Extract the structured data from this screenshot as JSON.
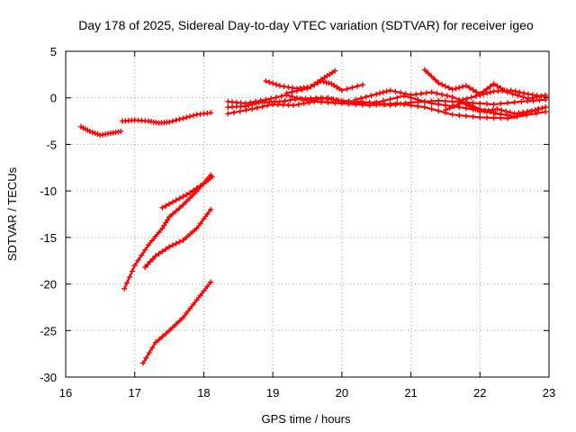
{
  "chart_data": {
    "type": "scatter",
    "title": "Day 178 of 2025, Sidereal Day-to-day VTEC variation (SDTVAR) for receiver igeo",
    "xlabel": "GPS time / hours",
    "ylabel": "SDTVAR / TECUs",
    "xlim": [
      16,
      23
    ],
    "ylim": [
      -30,
      5
    ],
    "xticks": [
      16,
      17,
      18,
      19,
      20,
      21,
      22,
      23
    ],
    "yticks": [
      5,
      0,
      -5,
      -10,
      -15,
      -20,
      -25,
      -30
    ],
    "grid": true,
    "marker": "+",
    "color": "#ff0000",
    "series": [
      {
        "name": "s1",
        "points": [
          [
            16.22,
            -3.1
          ],
          [
            16.35,
            -3.6
          ],
          [
            16.5,
            -4.0
          ],
          [
            16.65,
            -3.8
          ],
          [
            16.8,
            -3.6
          ]
        ]
      },
      {
        "name": "s2",
        "points": [
          [
            16.82,
            -2.5
          ],
          [
            17.0,
            -2.4
          ],
          [
            17.2,
            -2.5
          ],
          [
            17.35,
            -2.7
          ],
          [
            17.5,
            -2.6
          ],
          [
            17.7,
            -2.2
          ],
          [
            17.9,
            -1.8
          ],
          [
            18.1,
            -1.6
          ]
        ]
      },
      {
        "name": "s3",
        "points": [
          [
            16.85,
            -20.5
          ],
          [
            17.0,
            -18.0
          ],
          [
            17.2,
            -15.8
          ],
          [
            17.4,
            -14.0
          ],
          [
            17.5,
            -12.8
          ],
          [
            17.7,
            -11.5
          ],
          [
            17.9,
            -10.0
          ],
          [
            18.1,
            -8.3
          ]
        ]
      },
      {
        "name": "s4",
        "points": [
          [
            17.4,
            -11.8
          ],
          [
            17.6,
            -11.0
          ],
          [
            17.8,
            -10.2
          ],
          [
            18.0,
            -9.2
          ],
          [
            18.12,
            -8.5
          ]
        ]
      },
      {
        "name": "s5",
        "points": [
          [
            17.15,
            -18.2
          ],
          [
            17.3,
            -17.0
          ],
          [
            17.5,
            -16.0
          ],
          [
            17.7,
            -15.3
          ],
          [
            17.9,
            -14.0
          ],
          [
            18.1,
            -12.0
          ]
        ]
      },
      {
        "name": "s6",
        "points": [
          [
            17.12,
            -28.5
          ],
          [
            17.3,
            -26.3
          ],
          [
            17.5,
            -25.0
          ],
          [
            17.7,
            -23.6
          ],
          [
            17.9,
            -21.7
          ],
          [
            18.1,
            -19.8
          ]
        ]
      },
      {
        "name": "s7",
        "points": [
          [
            18.35,
            -1.0
          ],
          [
            18.6,
            -0.9
          ],
          [
            18.8,
            -0.5
          ],
          [
            19.1,
            -0.4
          ],
          [
            19.4,
            -0.1
          ],
          [
            19.7,
            0.0
          ],
          [
            20.0,
            -0.3
          ],
          [
            20.4,
            -0.5
          ],
          [
            20.7,
            -0.8
          ],
          [
            21.0,
            -0.5
          ],
          [
            21.4,
            -0.3
          ],
          [
            21.8,
            -0.5
          ],
          [
            22.2,
            -0.7
          ],
          [
            22.6,
            -0.4
          ],
          [
            22.95,
            -0.2
          ]
        ]
      },
      {
        "name": "s8",
        "points": [
          [
            18.35,
            -0.4
          ],
          [
            18.6,
            -0.6
          ],
          [
            18.9,
            -0.2
          ],
          [
            19.2,
            0.3
          ],
          [
            19.5,
            -0.3
          ],
          [
            19.8,
            0.0
          ],
          [
            20.1,
            -0.6
          ],
          [
            20.5,
            -0.5
          ],
          [
            20.9,
            0.2
          ],
          [
            21.3,
            -0.6
          ],
          [
            21.7,
            -1.0
          ],
          [
            22.1,
            -1.5
          ],
          [
            22.5,
            -2.0
          ],
          [
            22.95,
            -1.0
          ]
        ]
      },
      {
        "name": "s9",
        "points": [
          [
            18.35,
            -1.7
          ],
          [
            18.7,
            -1.2
          ],
          [
            19.0,
            -0.7
          ],
          [
            19.3,
            -0.8
          ],
          [
            19.6,
            -0.4
          ],
          [
            20.0,
            -0.6
          ],
          [
            20.4,
            -0.8
          ],
          [
            20.8,
            -0.6
          ],
          [
            21.2,
            -1.0
          ],
          [
            21.6,
            -1.8
          ],
          [
            22.0,
            -2.1
          ],
          [
            22.4,
            -2.2
          ],
          [
            22.95,
            -1.5
          ]
        ]
      },
      {
        "name": "s10",
        "points": [
          [
            18.9,
            1.8
          ],
          [
            19.1,
            1.3
          ],
          [
            19.35,
            1.0
          ],
          [
            19.55,
            1.2
          ],
          [
            19.75,
            2.2
          ],
          [
            19.9,
            2.9
          ]
        ]
      },
      {
        "name": "s11",
        "points": [
          [
            19.2,
            0.5
          ],
          [
            19.5,
            1.0
          ],
          [
            19.7,
            1.8
          ],
          [
            19.85,
            1.5
          ],
          [
            20.0,
            0.8
          ],
          [
            20.3,
            1.4
          ]
        ]
      },
      {
        "name": "s12",
        "points": [
          [
            20.2,
            -0.2
          ],
          [
            20.5,
            0.4
          ],
          [
            20.7,
            0.8
          ],
          [
            21.0,
            0.3
          ],
          [
            21.3,
            0.6
          ],
          [
            21.6,
            0.1
          ],
          [
            22.0,
            -1.2
          ],
          [
            22.3,
            -1.8
          ]
        ]
      },
      {
        "name": "s13",
        "points": [
          [
            21.2,
            3.0
          ],
          [
            21.4,
            1.6
          ],
          [
            21.6,
            0.9
          ],
          [
            21.8,
            1.3
          ],
          [
            22.0,
            0.4
          ],
          [
            22.2,
            1.5
          ],
          [
            22.4,
            0.6
          ],
          [
            22.7,
            -0.1
          ],
          [
            22.95,
            0.3
          ]
        ]
      },
      {
        "name": "s14",
        "points": [
          [
            21.75,
            -0.2
          ],
          [
            22.0,
            0.3
          ],
          [
            22.2,
            0.7
          ],
          [
            22.45,
            0.8
          ],
          [
            22.7,
            0.4
          ],
          [
            22.95,
            0.1
          ]
        ]
      },
      {
        "name": "s15",
        "points": [
          [
            21.5,
            -1.3
          ],
          [
            21.75,
            -0.5
          ],
          [
            22.0,
            -1.5
          ],
          [
            22.25,
            -1.2
          ],
          [
            22.5,
            -1.7
          ],
          [
            22.75,
            -1.4
          ],
          [
            22.95,
            -1.0
          ]
        ]
      }
    ]
  }
}
